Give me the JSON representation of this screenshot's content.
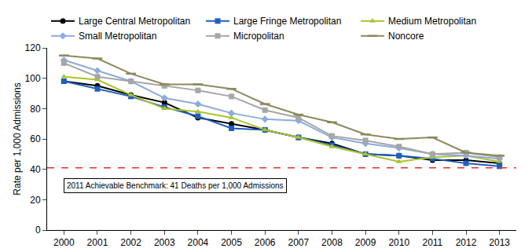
{
  "chart_data": {
    "type": "line",
    "y_label": "Rate per 1,000 Admissions",
    "categories": [
      "2000",
      "2001",
      "2002",
      "2003",
      "2004",
      "2005",
      "2006",
      "2007",
      "2008",
      "2009",
      "2010",
      "2011",
      "2012",
      "2013"
    ],
    "series": [
      {
        "name": "Large Central Metropolitan",
        "color": "#000000",
        "marker": "circle",
        "values": [
          98,
          95,
          89,
          84,
          74,
          70,
          66,
          61,
          57,
          50,
          49,
          46,
          46,
          44
        ]
      },
      {
        "name": "Large Fringe Metropolitan",
        "color": "#1f5fc0",
        "marker": "square",
        "values": [
          98,
          93,
          88,
          81,
          75,
          67,
          66,
          61,
          56,
          50,
          49,
          47,
          44,
          42
        ]
      },
      {
        "name": "Medium Metropolitan",
        "color": "#a9c42b",
        "marker": "triangle-up",
        "values": [
          101,
          99,
          89,
          80,
          78,
          74,
          66,
          61,
          55,
          50,
          45,
          48,
          49,
          45
        ]
      },
      {
        "name": "Small Metropolitan",
        "color": "#8eaadf",
        "marker": "diamond",
        "values": [
          112,
          105,
          98,
          87,
          83,
          77,
          73,
          72,
          61,
          57,
          54,
          50,
          49,
          47
        ]
      },
      {
        "name": "Micropolitan",
        "color": "#a6a6a6",
        "marker": "square",
        "values": [
          110,
          101,
          98,
          95,
          92,
          88,
          79,
          74,
          62,
          59,
          55,
          50,
          51,
          48
        ]
      },
      {
        "name": "Noncore",
        "color": "#8c8a5e",
        "marker": "line-ew",
        "values": [
          115,
          113,
          103,
          96,
          96,
          93,
          83,
          76,
          71,
          63,
          60,
          61,
          51,
          49
        ]
      }
    ],
    "benchmark": {
      "value": 41,
      "label": "2011 Achievable Benchmark: 41 Deaths per 1,000 Admissions",
      "color": "#e03030",
      "line_style": "dash"
    },
    "ylim": [
      0,
      120
    ],
    "yticks": [
      0,
      20,
      40,
      60,
      80,
      100,
      120
    ],
    "grid": false,
    "legend": "top"
  }
}
